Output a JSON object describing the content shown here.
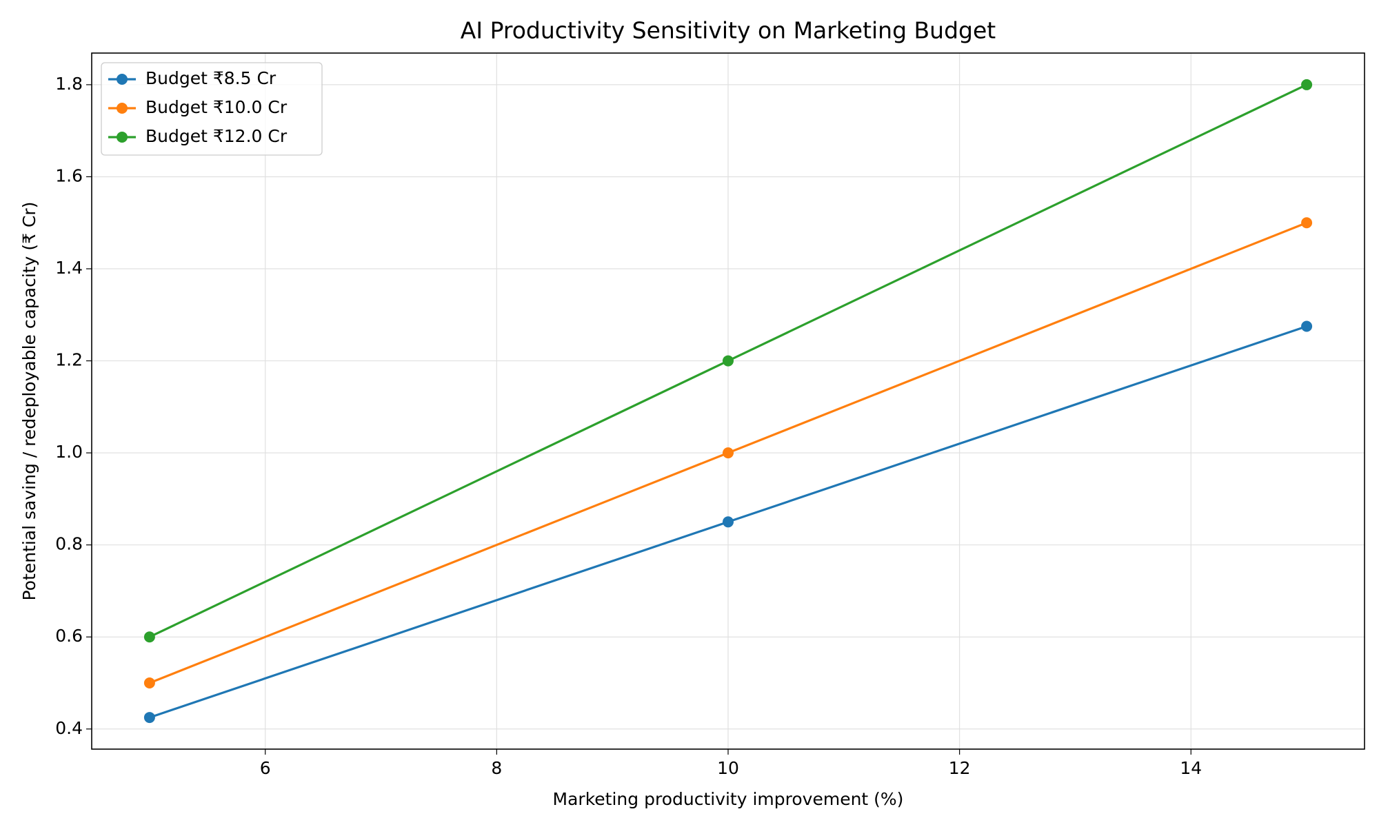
{
  "chart_data": {
    "type": "line",
    "title": "AI Productivity Sensitivity on Marketing Budget",
    "x_label": "Marketing productivity improvement (%)",
    "y_label": "Potential saving / redeployable capacity (₹ Cr)",
    "x": [
      5,
      10,
      15
    ],
    "series": [
      {
        "name": "Budget ₹8.5 Cr",
        "color": "#1f77b4",
        "values": [
          0.425,
          0.85,
          1.275
        ]
      },
      {
        "name": "Budget ₹10.0 Cr",
        "color": "#ff7f0e",
        "values": [
          0.5,
          1.0,
          1.5
        ]
      },
      {
        "name": "Budget ₹12.0 Cr",
        "color": "#2ca02c",
        "values": [
          0.6,
          1.2,
          1.8
        ]
      }
    ],
    "xlim": [
      4.5,
      15.5
    ],
    "xticks": [
      6,
      8,
      10,
      12,
      14
    ],
    "ylim": [
      0.35625,
      1.86875
    ],
    "yticks": [
      0.4,
      0.6,
      0.8,
      {
        "value": 1,
        "label": "1.0"
      },
      1.2,
      1.4,
      1.6,
      1.8
    ],
    "grid": true,
    "legend": "upper-left"
  }
}
